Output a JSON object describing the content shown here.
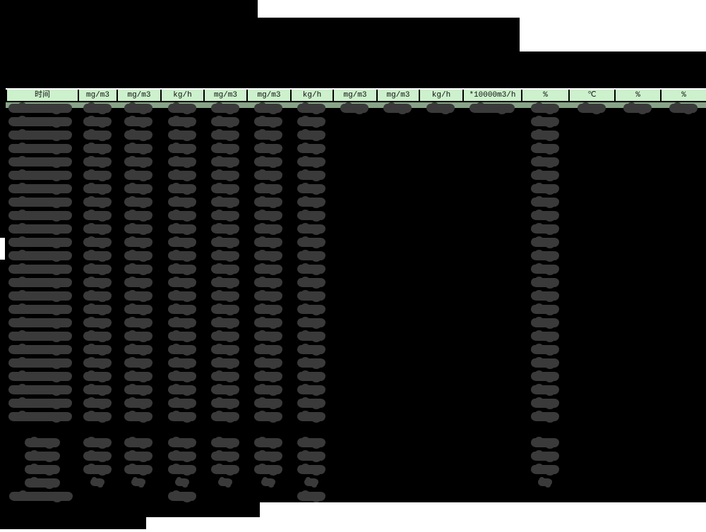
{
  "table": {
    "columns": [
      {
        "label": "时间"
      },
      {
        "label": "mg/m3"
      },
      {
        "label": "mg/m3"
      },
      {
        "label": "kg/h"
      },
      {
        "label": "mg/m3"
      },
      {
        "label": "mg/m3"
      },
      {
        "label": "kg/h"
      },
      {
        "label": "mg/m3"
      },
      {
        "label": "mg/m3"
      },
      {
        "label": "kg/h"
      },
      {
        "label": "*10000m3/h"
      },
      {
        "label": "%"
      },
      {
        "label": "℃"
      },
      {
        "label": "%"
      },
      {
        "label": "%"
      }
    ],
    "redaction": {
      "main_row_count": 24,
      "first_row_filled_columns": [
        0,
        1,
        2,
        3,
        4,
        5,
        6,
        7,
        8,
        9,
        10,
        11,
        12,
        13,
        14
      ],
      "body_filled_columns": [
        0,
        1,
        2,
        3,
        4,
        5,
        6,
        11
      ],
      "summary_rows": [
        {
          "kind": "stat",
          "filled_columns": [
            1,
            2,
            3,
            4,
            5,
            6,
            11
          ]
        },
        {
          "kind": "stat",
          "filled_columns": [
            1,
            2,
            3,
            4,
            5,
            6,
            11
          ]
        },
        {
          "kind": "stat",
          "filled_columns": [
            1,
            2,
            3,
            4,
            5,
            6,
            11
          ]
        },
        {
          "kind": "stat_small",
          "filled_columns": [
            1,
            2,
            3,
            4,
            5,
            6,
            11
          ]
        },
        {
          "kind": "footer_note",
          "filled_columns": [
            3,
            6
          ]
        }
      ]
    }
  },
  "colors": {
    "background": "#000000",
    "paper_white": "#ffffff",
    "header_green": "#ccf1cc",
    "band_green": "#87a487",
    "redaction_gray": "#3a3a3a"
  }
}
